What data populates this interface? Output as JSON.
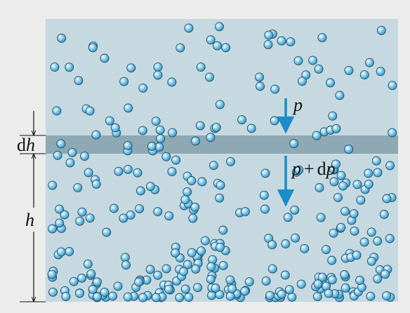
{
  "labels": {
    "pressure_top": [
      "p"
    ],
    "pressure_bottom": [
      "p",
      "+",
      "d",
      "p"
    ],
    "layer_thickness": [
      "d",
      "h"
    ],
    "height": [
      "h"
    ]
  }
}
